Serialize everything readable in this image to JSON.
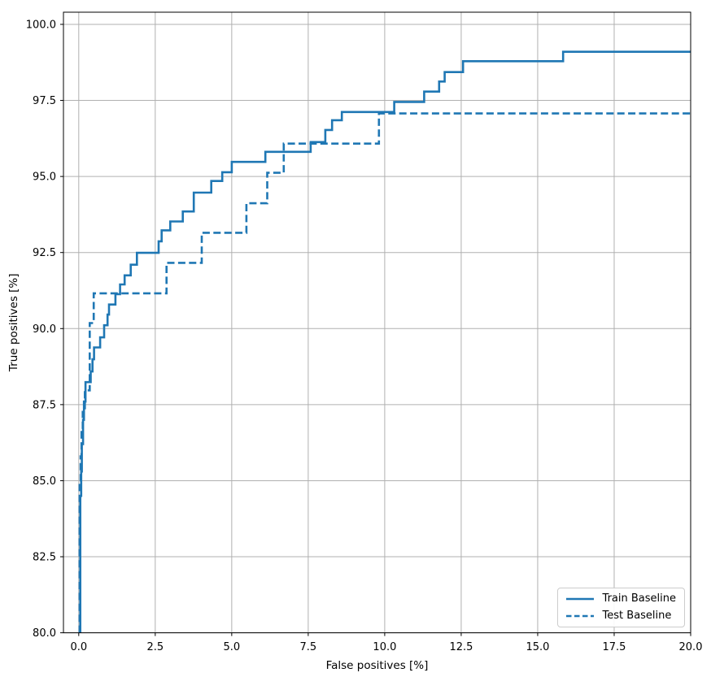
{
  "chart_data": {
    "type": "line",
    "subtype": "step-post",
    "title": "",
    "xlabel": "False positives [%]",
    "ylabel": "True positives [%]",
    "xlim": [
      -0.5,
      20.0
    ],
    "ylim": [
      80.0,
      100.4
    ],
    "x_ticks": [
      0.0,
      2.5,
      5.0,
      7.5,
      10.0,
      12.5,
      15.0,
      17.5,
      20.0
    ],
    "x_tick_labels": [
      "0.0",
      "2.5",
      "5.0",
      "7.5",
      "10.0",
      "12.5",
      "15.0",
      "17.5",
      "20.0"
    ],
    "y_ticks": [
      80.0,
      82.5,
      85.0,
      87.5,
      90.0,
      92.5,
      95.0,
      97.5,
      100.0
    ],
    "y_tick_labels": [
      "80.0",
      "82.5",
      "85.0",
      "87.5",
      "90.0",
      "92.5",
      "95.0",
      "97.5",
      "100.0"
    ],
    "grid": true,
    "grid_color": "#b0b0b0",
    "spine_color": "#000000",
    "legend_position": "lower right",
    "series": [
      {
        "name": "Train Baseline",
        "color": "#1f77b4",
        "line_style": "solid",
        "points": [
          [
            0.05,
            80.0
          ],
          [
            0.05,
            84.5
          ],
          [
            0.08,
            85.3
          ],
          [
            0.1,
            86.2
          ],
          [
            0.14,
            87.0
          ],
          [
            0.17,
            87.6
          ],
          [
            0.22,
            88.24
          ],
          [
            0.39,
            88.59
          ],
          [
            0.45,
            88.99
          ],
          [
            0.5,
            89.38
          ],
          [
            0.7,
            89.71
          ],
          [
            0.83,
            90.11
          ],
          [
            0.94,
            90.46
          ],
          [
            0.99,
            90.79
          ],
          [
            1.2,
            91.13
          ],
          [
            1.35,
            91.45
          ],
          [
            1.5,
            91.75
          ],
          [
            1.7,
            92.1
          ],
          [
            1.9,
            92.49
          ],
          [
            2.61,
            92.87
          ],
          [
            2.71,
            93.23
          ],
          [
            2.99,
            93.52
          ],
          [
            3.4,
            93.85
          ],
          [
            3.76,
            94.47
          ],
          [
            4.33,
            94.85
          ],
          [
            4.69,
            95.14
          ],
          [
            5.0,
            95.48
          ],
          [
            6.1,
            95.81
          ],
          [
            7.58,
            96.13
          ],
          [
            8.06,
            96.53
          ],
          [
            8.28,
            96.85
          ],
          [
            8.6,
            97.12
          ],
          [
            10.31,
            97.45
          ],
          [
            11.29,
            97.79
          ],
          [
            11.78,
            98.12
          ],
          [
            11.96,
            98.43
          ],
          [
            12.56,
            98.79
          ],
          [
            15.83,
            99.1
          ],
          [
            20.0,
            99.1
          ]
        ]
      },
      {
        "name": "Test Baseline",
        "color": "#1f77b4",
        "line_style": "dashed",
        "points": [
          [
            0.03,
            80.0
          ],
          [
            0.03,
            85.0
          ],
          [
            0.06,
            85.8
          ],
          [
            0.09,
            86.6
          ],
          [
            0.13,
            87.26
          ],
          [
            0.2,
            87.97
          ],
          [
            0.36,
            90.18
          ],
          [
            0.49,
            91.16
          ],
          [
            2.87,
            92.16
          ],
          [
            4.02,
            93.15
          ],
          [
            5.48,
            94.12
          ],
          [
            6.16,
            95.12
          ],
          [
            6.7,
            96.08
          ],
          [
            9.81,
            97.07
          ],
          [
            20.0,
            97.07
          ]
        ]
      }
    ]
  }
}
